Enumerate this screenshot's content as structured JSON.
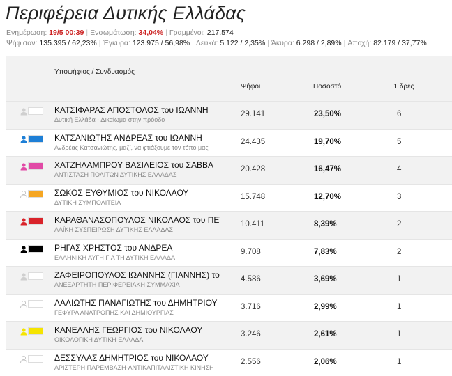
{
  "title": "Περιφέρεια Δυτικής Ελλάδας",
  "stats": {
    "updated_label": "Ενημέρωση:",
    "updated_value": "19/5 00:39",
    "integration_label": "Ενσωμάτωση:",
    "integration_value": "34,04%",
    "voters_label": "Γραμμένοι:",
    "voters_value": "217.574",
    "voted_label": "Ψήφισαν:",
    "voted_value": "135.395 / 62,23%",
    "valid_label": "Έγκυρα:",
    "valid_value": "123.975 / 56,98%",
    "blank_label": "Λευκά:",
    "blank_value": "5.122 / 2,35%",
    "invalid_label": "Άκυρα:",
    "invalid_value": "6.298 / 2,89%",
    "abstention_label": "Αποχή:",
    "abstention_value": "82.179 / 37,77%"
  },
  "table": {
    "headers": {
      "candidate": "Υποψήφιος / Συνδυασμός",
      "votes": "Ψήφοι",
      "percent": "Ποσοστό",
      "seats": "Έδρες"
    },
    "rows": [
      {
        "name": "ΚΑΤΣΙΦΑΡΑΣ ΑΠΟΣΤΟΛΟΣ του ΙΩΑΝΝΗ",
        "party": "Δυτική Ελλάδα - Δικαίωμα στην πρόοδο",
        "votes": "29.141",
        "percent": "23,50%",
        "seats": "6",
        "color": "#ffffff",
        "icon": "gray"
      },
      {
        "name": "ΚΑΤΣΑΝΙΩΤΗΣ ΑΝΔΡΕΑΣ του ΙΩΑΝΝΗ",
        "party": "Ανδρέας Κατσανιώτης, μαζί, να φτιάξουμε τον τόπο μας",
        "votes": "24.435",
        "percent": "19,70%",
        "seats": "5",
        "color": "#1e7fd6",
        "icon": "blue"
      },
      {
        "name": "ΧΑΤΖΗΛΑΜΠΡΟΥ ΒΑΣΙΛΕΙΟΣ του ΣΑΒΒΑ",
        "party": "ΑΝΤΙΣΤΑΣΗ ΠΟΛΙΤΩΝ ΔΥΤΙΚΗΣ ΕΛΛΑΔΑΣ",
        "votes": "20.428",
        "percent": "16,47%",
        "seats": "4",
        "color": "#e14aa6",
        "icon": "pink"
      },
      {
        "name": "ΣΩΚΟΣ ΕΥΘΥΜΙΟΣ του ΝΙΚΟΛΑΟΥ",
        "party": "ΔΥΤΙΚΗ ΣΥΜΠΟΛΙΤΕΙΑ",
        "votes": "15.748",
        "percent": "12,70%",
        "seats": "3",
        "color": "#f5a623",
        "icon": "outline"
      },
      {
        "name": "ΚΑΡΑΘΑΝΑΣΟΠΟΥΛΟΣ ΝΙΚΟΛΑΟΣ του ΠΕΤΡΟΥ",
        "party": "ΛΑΪΚΗ ΣΥΣΠΕΙΡΩΣΗ ΔΥΤΙΚΗΣ ΕΛΛΑΔΑΣ",
        "votes": "10.411",
        "percent": "8,39%",
        "seats": "2",
        "color": "#d9232a",
        "icon": "red"
      },
      {
        "name": "ΡΗΓΑΣ ΧΡΗΣΤΟΣ του ΑΝΔΡΕΑ",
        "party": "ΕΛΛΗΝΙΚΗ ΑΥΓΗ ΓΙΑ ΤΗ ΔΥΤΙΚΗ ΕΛΛΑΔΑ",
        "votes": "9.708",
        "percent": "7,83%",
        "seats": "2",
        "color": "#000000",
        "icon": "black"
      },
      {
        "name": "ΖΑΦΕΙΡΟΠΟΥΛΟΣ ΙΩΑΝΝΗΣ (ΓΙΑΝΝΗΣ) του ΠΕΤΡΟΥ",
        "party": "ΑΝΕΞΑΡΤΗΤΗ ΠΕΡΙΦΕΡΕΙΑΚΗ ΣΥΜΜΑΧΙΑ",
        "votes": "4.586",
        "percent": "3,69%",
        "seats": "1",
        "color": "#ffffff",
        "icon": "gray"
      },
      {
        "name": "ΛΑΛΙΩΤΗΣ ΠΑΝΑΓΙΩΤΗΣ του ΔΗΜΗΤΡΙΟΥ",
        "party": "ΓΕΦΥΡΑ ΑΝΑΤΡΟΠΗΣ ΚΑΙ ΔΗΜΙΟΥΡΓΙΑΣ",
        "votes": "3.716",
        "percent": "2,99%",
        "seats": "1",
        "color": "#ffffff",
        "icon": "outline"
      },
      {
        "name": "ΚΑΝΕΛΛΗΣ ΓΕΩΡΓΙΟΣ του ΝΙΚΟΛΑΟΥ",
        "party": "ΟΙΚΟΛΟΓΙΚΗ ΔΥΤΙΚΗ ΕΛΛΑΔΑ",
        "votes": "3.246",
        "percent": "2,61%",
        "seats": "1",
        "color": "#f5e400",
        "icon": "yellow"
      },
      {
        "name": "ΔΕΣΣΥΛΑΣ ΔΗΜΗΤΡΙΟΣ του ΝΙΚΟΛΑΟΥ",
        "party": "ΑΡΙΣΤΕΡΗ ΠΑΡΕΜΒΑΣΗ-ΑΝΤΙΚΑΠΙΤΑΛΙΣΤΙΚΗ ΚΙΝΗΣΗ",
        "votes": "2.556",
        "percent": "2,06%",
        "seats": "1",
        "color": "#ffffff",
        "icon": "outline"
      }
    ]
  }
}
